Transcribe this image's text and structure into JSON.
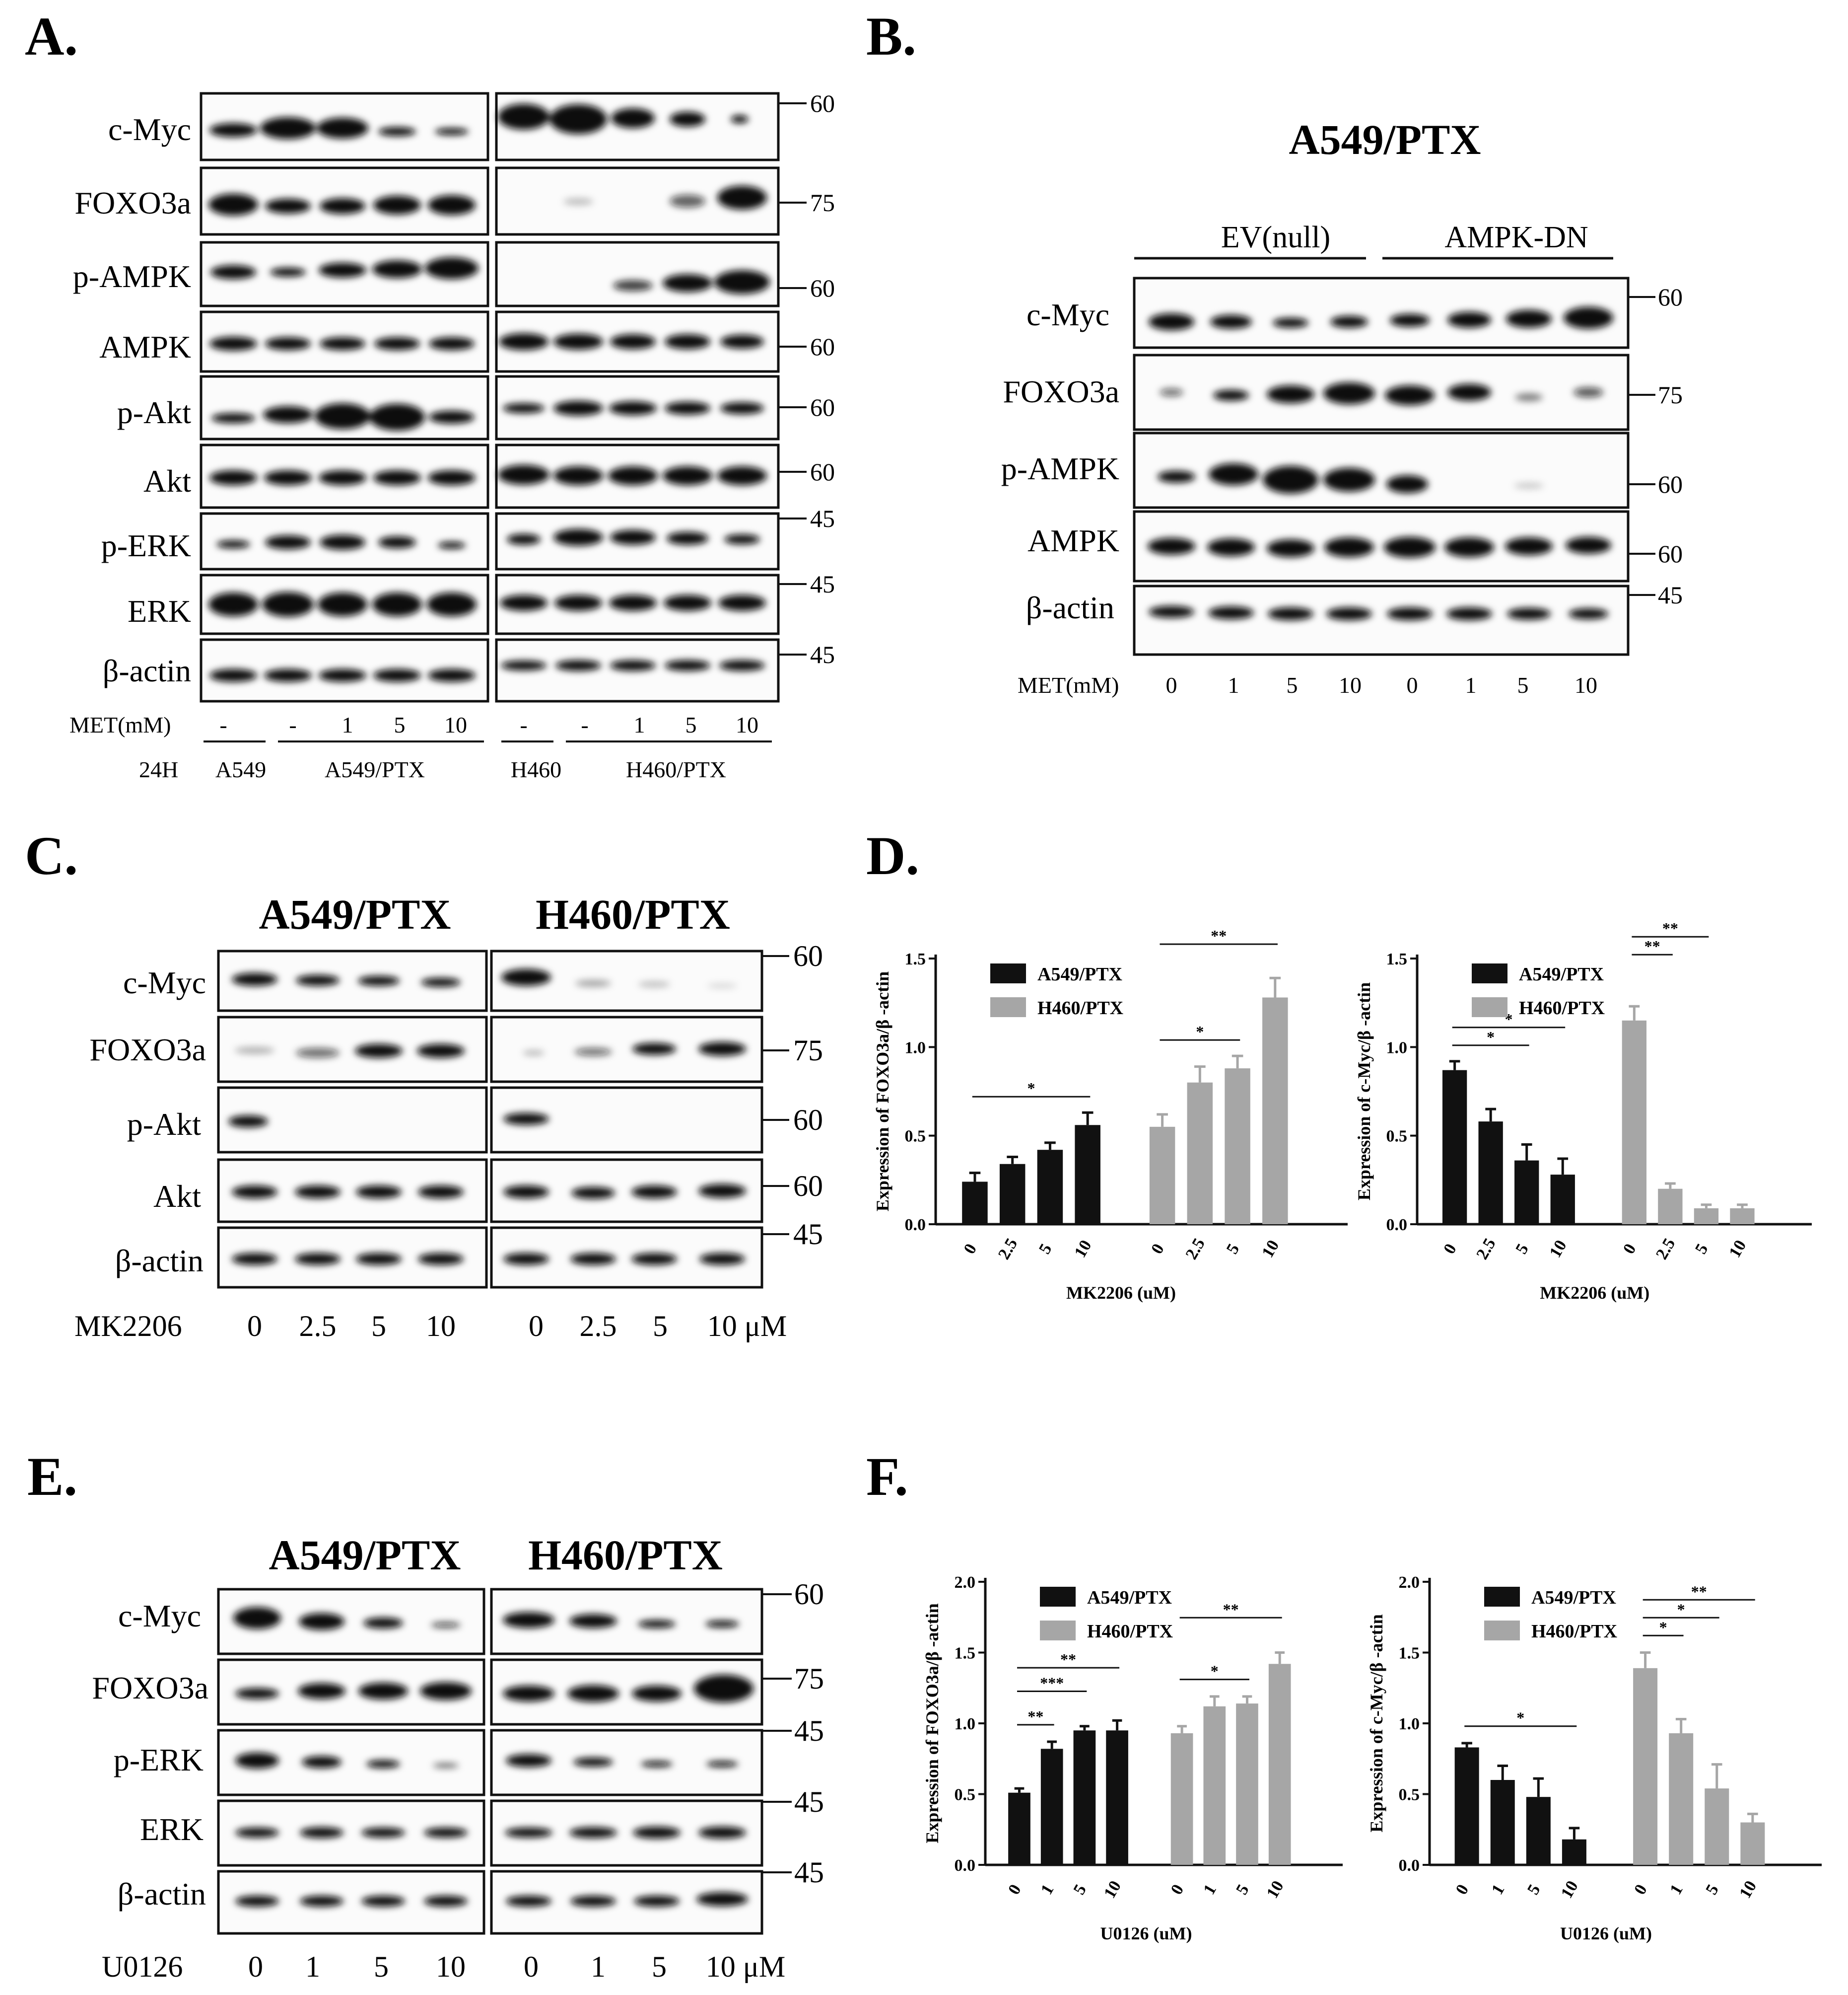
{
  "panels": {
    "A": {
      "label": "A.",
      "row_labels": [
        "c-Myc",
        "FOXO3a",
        "p-AMPK",
        "AMPK",
        "p-Akt",
        "Akt",
        "p-ERK",
        "ERK",
        "β-actin"
      ],
      "markers": [
        "60",
        "75",
        "60",
        "60",
        "60",
        "60",
        "45",
        "45",
        "45"
      ],
      "met_label": "MET(mM)",
      "met_values": [
        "-",
        "-",
        "1",
        "5",
        "10",
        "-",
        "-",
        "1",
        "5",
        "10"
      ],
      "time_label": "24H",
      "groups": [
        "A549",
        "A549/PTX",
        "H460",
        "H460/PTX"
      ]
    },
    "B": {
      "label": "B.",
      "title": "A549/PTX",
      "groups": [
        "EV(null)",
        "AMPK-DN"
      ],
      "row_labels": [
        "c-Myc",
        "FOXO3a",
        "p-AMPK",
        "AMPK",
        "β-actin"
      ],
      "markers": [
        "60",
        "75",
        "60",
        "60",
        "45"
      ],
      "met_label": "MET(mM)",
      "met_values": [
        "0",
        "1",
        "5",
        "10",
        "0",
        "1",
        "5",
        "10"
      ]
    },
    "C": {
      "label": "C.",
      "titles": [
        "A549/PTX",
        "H460/PTX"
      ],
      "row_labels": [
        "c-Myc",
        "FOXO3a",
        "p-Akt",
        "Akt",
        "β-actin"
      ],
      "markers": [
        "60",
        "75",
        "60",
        "60",
        "45"
      ],
      "treat_label": "MK2206",
      "treat_values": [
        "0",
        "2.5",
        "5",
        "10",
        "0",
        "2.5",
        "5",
        "10 μM"
      ]
    },
    "E": {
      "label": "E.",
      "titles": [
        "A549/PTX",
        "H460/PTX"
      ],
      "row_labels": [
        "c-Myc",
        "FOXO3a",
        "p-ERK",
        "ERK",
        "β-actin"
      ],
      "markers": [
        "60",
        "75",
        "45",
        "45",
        "45"
      ],
      "treat_label": "U0126",
      "treat_values": [
        "0",
        "1",
        "5",
        "10",
        "0",
        "1",
        "5",
        "10 μM"
      ]
    },
    "D": {
      "label": "D."
    },
    "F": {
      "label": "F."
    }
  },
  "colors": {
    "series1": "#111111",
    "series2": "#a6a6a6"
  },
  "chart_data": [
    {
      "panel": "D",
      "type": "bar",
      "ylabel": "Expression of FOXO3a/β -actin",
      "xlabel": "MK2206 (uM)",
      "ylim": [
        0,
        1.5
      ],
      "yticks": [
        "0.0",
        "0.5",
        "1.0",
        "1.5"
      ],
      "categories": [
        "0",
        "2.5",
        "5",
        "10"
      ],
      "series": [
        {
          "name": "A549/PTX",
          "values": [
            0.24,
            0.34,
            0.42,
            0.56
          ],
          "errors": [
            0.05,
            0.04,
            0.04,
            0.07
          ]
        },
        {
          "name": "H460/PTX",
          "values": [
            0.55,
            0.8,
            0.88,
            1.28
          ],
          "errors": [
            0.07,
            0.09,
            0.07,
            0.11
          ]
        }
      ],
      "significance": [
        {
          "series": 0,
          "from": 0,
          "to": 3,
          "level": 1,
          "text": "*"
        },
        {
          "series": 1,
          "from": 0,
          "to": 2,
          "level": 1,
          "text": "*"
        },
        {
          "series": 1,
          "from": 0,
          "to": 3,
          "level": 2,
          "text": "**"
        }
      ]
    },
    {
      "panel": "D",
      "type": "bar",
      "ylabel": "Expression of c-Myc/β -actin",
      "xlabel": "MK2206 (uM)",
      "ylim": [
        0,
        1.5
      ],
      "yticks": [
        "0.0",
        "0.5",
        "1.0",
        "1.5"
      ],
      "categories": [
        "0",
        "2.5",
        "5",
        "10"
      ],
      "series": [
        {
          "name": "A549/PTX",
          "values": [
            0.87,
            0.58,
            0.36,
            0.28
          ],
          "errors": [
            0.05,
            0.07,
            0.09,
            0.09
          ]
        },
        {
          "name": "H460/PTX",
          "values": [
            1.15,
            0.2,
            0.09,
            0.09
          ],
          "errors": [
            0.08,
            0.03,
            0.02,
            0.02
          ]
        }
      ],
      "significance": [
        {
          "series": 0,
          "from": 0,
          "to": 2,
          "level": 1,
          "text": "*"
        },
        {
          "series": 0,
          "from": 0,
          "to": 3,
          "level": 2,
          "text": "*"
        },
        {
          "series": 1,
          "from": 0,
          "to": 1,
          "level": 3,
          "text": "**"
        },
        {
          "series": 1,
          "from": 0,
          "to": 2,
          "level": 4,
          "text": "**"
        }
      ]
    },
    {
      "panel": "F",
      "type": "bar",
      "ylabel": "Expression of FOXO3a/β -actin",
      "xlabel": "U0126 (uM)",
      "ylim": [
        0,
        2.0
      ],
      "yticks": [
        "0.0",
        "0.5",
        "1.0",
        "1.5",
        "2.0"
      ],
      "categories": [
        "0",
        "1",
        "5",
        "10"
      ],
      "series": [
        {
          "name": "A549/PTX",
          "values": [
            0.51,
            0.82,
            0.95,
            0.95
          ],
          "errors": [
            0.03,
            0.05,
            0.03,
            0.07
          ]
        },
        {
          "name": "H460/PTX",
          "values": [
            0.93,
            1.12,
            1.14,
            1.42
          ],
          "errors": [
            0.05,
            0.07,
            0.05,
            0.08
          ]
        }
      ],
      "significance": [
        {
          "series": 0,
          "from": 0,
          "to": 1,
          "level": 1,
          "text": "**"
        },
        {
          "series": 0,
          "from": 0,
          "to": 2,
          "level": 2,
          "text": "***"
        },
        {
          "series": 0,
          "from": 0,
          "to": 3,
          "level": 3,
          "text": "**"
        },
        {
          "series": 1,
          "from": 0,
          "to": 2,
          "level": 1,
          "text": "*"
        },
        {
          "series": 1,
          "from": 0,
          "to": 3,
          "level": 2,
          "text": "**"
        }
      ]
    },
    {
      "panel": "F",
      "type": "bar",
      "ylabel": "Expression of c-Myc/β -actin",
      "xlabel": "U0126 (uM)",
      "ylim": [
        0,
        2.0
      ],
      "yticks": [
        "0.0",
        "0.5",
        "1.0",
        "1.5",
        "2.0"
      ],
      "categories": [
        "0",
        "1",
        "5",
        "10"
      ],
      "series": [
        {
          "name": "A549/PTX",
          "values": [
            0.83,
            0.6,
            0.48,
            0.18
          ],
          "errors": [
            0.03,
            0.1,
            0.13,
            0.08
          ]
        },
        {
          "name": "H460/PTX",
          "values": [
            1.39,
            0.93,
            0.54,
            0.3
          ],
          "errors": [
            0.11,
            0.1,
            0.17,
            0.06
          ]
        }
      ],
      "significance": [
        {
          "series": 0,
          "from": 0,
          "to": 3,
          "level": 1,
          "text": "*"
        },
        {
          "series": 1,
          "from": 0,
          "to": 1,
          "level": 1,
          "text": "*"
        },
        {
          "series": 1,
          "from": 0,
          "to": 2,
          "level": 2,
          "text": "*"
        },
        {
          "series": 1,
          "from": 0,
          "to": 3,
          "level": 3,
          "text": "**"
        }
      ]
    }
  ]
}
